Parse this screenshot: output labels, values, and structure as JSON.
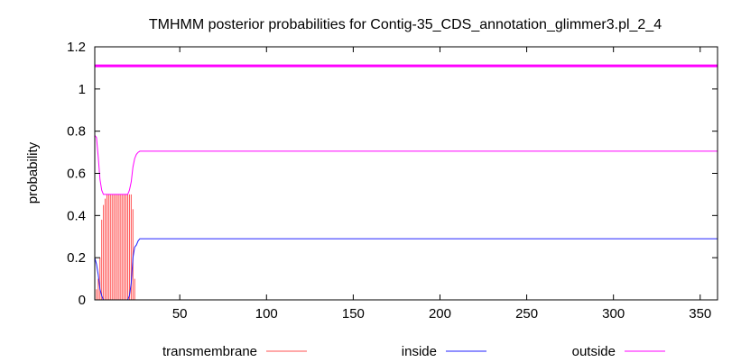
{
  "chart_data": {
    "type": "line",
    "title": "TMHMM posterior probabilities for Contig-35_CDS_annotation_glimmer3.pl_2_4",
    "xlabel": "",
    "ylabel": "probability",
    "xlim": [
      1,
      360
    ],
    "ylim": [
      0,
      1.2
    ],
    "x_ticks": [
      50,
      100,
      150,
      200,
      250,
      300,
      350
    ],
    "y_ticks": [
      0,
      0.2,
      0.4,
      0.6,
      0.8,
      1,
      1.2
    ],
    "y_tick_labels": [
      "0",
      "0.2",
      "0.4",
      "0.6",
      "0.8",
      "1",
      "1.2"
    ],
    "grid": false,
    "legend_position": "bottom",
    "colors": {
      "transmembrane": "#ff5050",
      "inside": "#2020ff",
      "outside": "#ff00ff",
      "reference_line": "#ff00ff"
    },
    "reference_line": {
      "y": 1.11
    },
    "series": [
      {
        "name": "transmembrane",
        "style": "impulses",
        "x": [
          2,
          3,
          4,
          5,
          6,
          7,
          8,
          9,
          10,
          11,
          12,
          13,
          14,
          15,
          16,
          17,
          18,
          19,
          20,
          21,
          22,
          23,
          24
        ],
        "values": [
          0.05,
          0.1,
          0.2,
          0.38,
          0.45,
          0.48,
          0.5,
          0.5,
          0.5,
          0.5,
          0.5,
          0.5,
          0.5,
          0.5,
          0.5,
          0.5,
          0.5,
          0.5,
          0.5,
          0.5,
          0.5,
          0.43,
          0.1
        ]
      },
      {
        "name": "inside",
        "style": "line",
        "x": [
          1,
          2,
          3,
          4,
          5,
          6,
          7,
          8,
          9,
          10,
          11,
          12,
          13,
          14,
          15,
          16,
          17,
          18,
          19,
          20,
          21,
          22,
          23,
          24,
          25,
          26,
          27,
          28,
          29,
          30,
          35,
          40,
          50,
          100,
          150,
          200,
          250,
          300,
          340,
          360
        ],
        "values": [
          0.2,
          0.17,
          0.12,
          0.05,
          0.02,
          0.0,
          0.0,
          0.0,
          0.0,
          0.0,
          0.0,
          0.0,
          0.0,
          0.0,
          0.0,
          0.0,
          0.0,
          0.0,
          0.0,
          0.0,
          0.02,
          0.08,
          0.2,
          0.25,
          0.26,
          0.28,
          0.29,
          0.29,
          0.29,
          0.29,
          0.29,
          0.29,
          0.29,
          0.29,
          0.29,
          0.29,
          0.29,
          0.29,
          0.29,
          0.29
        ]
      },
      {
        "name": "outside",
        "style": "line",
        "x": [
          1,
          2,
          3,
          4,
          5,
          6,
          7,
          8,
          9,
          10,
          11,
          12,
          13,
          14,
          15,
          16,
          17,
          18,
          19,
          20,
          21,
          22,
          23,
          24,
          25,
          26,
          27,
          28,
          29,
          30,
          35,
          40,
          50,
          100,
          150,
          200,
          250,
          300,
          340,
          360
        ],
        "values": [
          0.78,
          0.77,
          0.68,
          0.57,
          0.52,
          0.5,
          0.5,
          0.5,
          0.5,
          0.5,
          0.5,
          0.5,
          0.5,
          0.5,
          0.5,
          0.5,
          0.5,
          0.5,
          0.5,
          0.5,
          0.52,
          0.56,
          0.63,
          0.67,
          0.69,
          0.7,
          0.705,
          0.705,
          0.705,
          0.705,
          0.705,
          0.705,
          0.705,
          0.705,
          0.705,
          0.705,
          0.705,
          0.705,
          0.705,
          0.705
        ]
      }
    ]
  }
}
